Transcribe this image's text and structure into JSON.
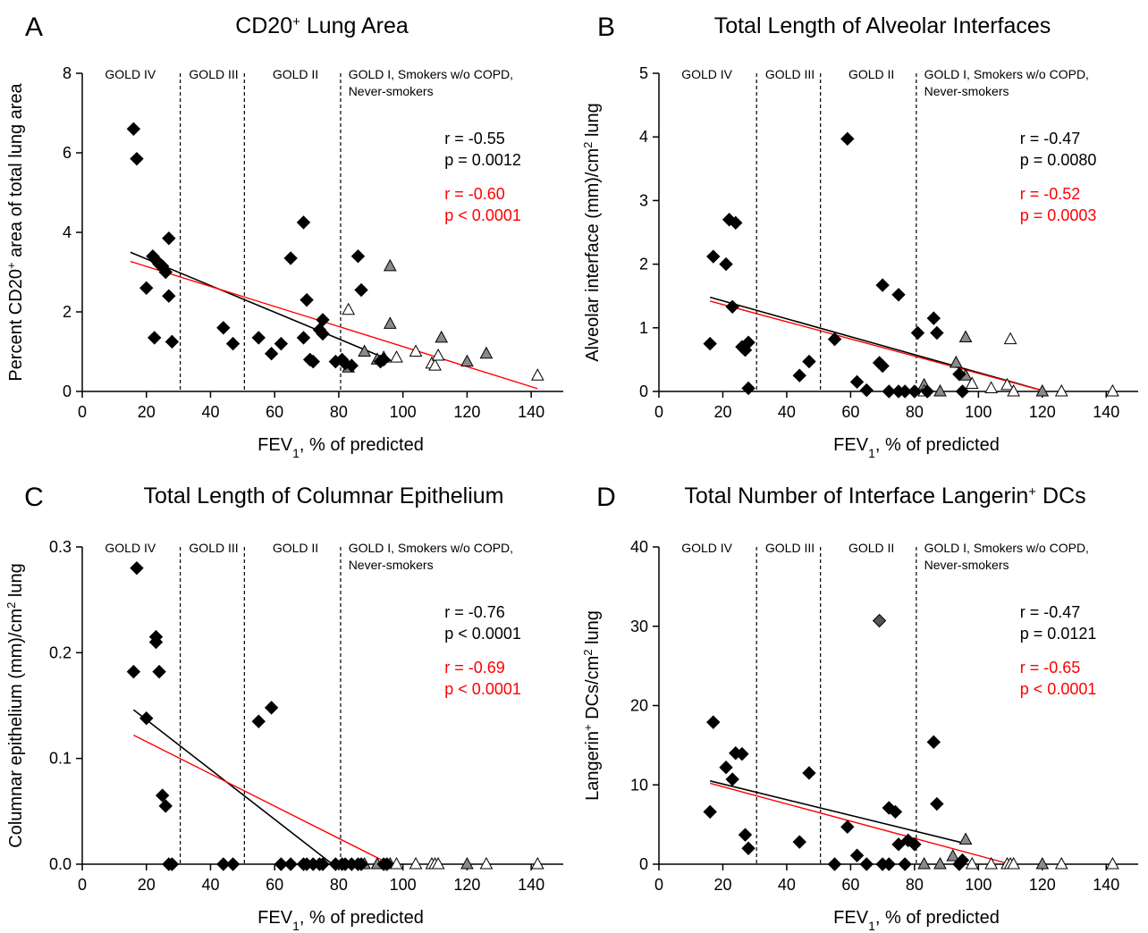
{
  "colors": {
    "black_series": "#000000",
    "gray_series": "#8a8a8a",
    "white_series": "#ffffff",
    "fit_black": "#000000",
    "fit_red": "#ff0000"
  },
  "shared": {
    "xlabel_main": "FEV",
    "xlabel_sub": "1",
    "xlabel_rest": ", % of predicted",
    "gold_labels": [
      "GOLD IV",
      "GOLD III",
      "GOLD II",
      "GOLD I, Smokers w/o COPD,",
      "Never-smokers"
    ],
    "gold_boundaries": [
      30,
      50,
      80
    ]
  },
  "chart_data": [
    {
      "type": "scatter",
      "letter": "A",
      "title": "CD20",
      "title_sup": "+",
      "title_rest": " Lung Area",
      "ylabel_parts": [
        "Percent CD20",
        "+",
        " area of total lung area"
      ],
      "xlim": [
        0,
        150
      ],
      "ylim": [
        0,
        8
      ],
      "xticks": [
        0,
        20,
        40,
        60,
        80,
        100,
        120,
        140
      ],
      "yticks": [
        0,
        2,
        4,
        6,
        8
      ],
      "stats_black": [
        "r = -0.55",
        "p = 0.0012"
      ],
      "stats_red": [
        "r = -0.60",
        "p < 0.0001"
      ],
      "fit_black": [
        [
          15,
          3.5
        ],
        [
          97,
          0.75
        ]
      ],
      "fit_red": [
        [
          15,
          3.27
        ],
        [
          142,
          0.07
        ]
      ],
      "black_diamonds": [
        [
          16,
          6.6
        ],
        [
          17,
          5.85
        ],
        [
          20,
          2.6
        ],
        [
          22,
          3.4
        ],
        [
          22.5,
          1.35
        ],
        [
          23,
          3.3
        ],
        [
          24,
          3.2
        ],
        [
          25,
          3.15
        ],
        [
          26,
          3.0
        ],
        [
          27,
          3.85
        ],
        [
          27,
          2.4
        ],
        [
          28,
          1.25
        ],
        [
          44,
          1.6
        ],
        [
          47,
          1.2
        ],
        [
          55,
          1.35
        ],
        [
          59,
          0.95
        ],
        [
          62,
          1.2
        ],
        [
          65,
          3.35
        ],
        [
          69,
          4.25
        ],
        [
          70,
          2.3
        ],
        [
          69,
          1.35
        ],
        [
          71,
          0.8
        ],
        [
          72,
          0.75
        ],
        [
          74,
          1.55
        ],
        [
          75,
          1.8
        ],
        [
          75,
          1.45
        ],
        [
          79,
          0.75
        ],
        [
          81,
          0.8
        ],
        [
          82,
          0.7
        ],
        [
          84,
          0.65
        ],
        [
          86,
          3.4
        ],
        [
          87,
          2.55
        ],
        [
          93,
          0.75
        ],
        [
          94,
          0.8
        ]
      ],
      "gray_triangles": [
        [
          83,
          0.6
        ],
        [
          88,
          1.0
        ],
        [
          92,
          0.8
        ],
        [
          96,
          3.15
        ],
        [
          96,
          1.7
        ],
        [
          112,
          1.35
        ],
        [
          120,
          0.75
        ],
        [
          126,
          0.95
        ]
      ],
      "white_triangles": [
        [
          83,
          2.05
        ],
        [
          94,
          0.85
        ],
        [
          98,
          0.85
        ],
        [
          104,
          1.0
        ],
        [
          109,
          0.7
        ],
        [
          110,
          0.65
        ],
        [
          111,
          0.9
        ],
        [
          142,
          0.4
        ]
      ]
    },
    {
      "type": "scatter",
      "letter": "B",
      "title": "Total Length of Alveolar Interfaces",
      "title_sup": "",
      "title_rest": "",
      "ylabel_parts": [
        "Alveolar interface (mm)/cm",
        "2",
        " lung"
      ],
      "xlim": [
        0,
        150
      ],
      "ylim": [
        0,
        5
      ],
      "xticks": [
        0,
        20,
        40,
        60,
        80,
        100,
        120,
        140
      ],
      "yticks": [
        0,
        1,
        2,
        3,
        4,
        5
      ],
      "stats_black": [
        "r = -0.47",
        "p = 0.0080"
      ],
      "stats_red": [
        "r = -0.52",
        "p = 0.0003"
      ],
      "fit_black": [
        [
          16,
          1.48
        ],
        [
          121,
          0.0
        ]
      ],
      "fit_red": [
        [
          16,
          1.42
        ],
        [
          121,
          0.0
        ]
      ],
      "black_diamonds": [
        [
          16,
          0.75
        ],
        [
          17,
          2.12
        ],
        [
          21,
          2.0
        ],
        [
          22,
          2.7
        ],
        [
          23,
          1.33
        ],
        [
          24,
          2.65
        ],
        [
          26,
          0.7
        ],
        [
          27,
          0.65
        ],
        [
          28,
          0.77
        ],
        [
          28,
          0.05
        ],
        [
          44,
          0.25
        ],
        [
          47,
          0.47
        ],
        [
          55,
          0.82
        ],
        [
          59,
          3.97
        ],
        [
          62,
          0.15
        ],
        [
          65,
          0.02
        ],
        [
          69,
          0.45
        ],
        [
          70,
          1.67
        ],
        [
          70,
          0.4
        ],
        [
          72,
          0.0
        ],
        [
          75,
          1.52
        ],
        [
          75,
          0.0
        ],
        [
          77,
          0.0
        ],
        [
          80,
          0.0
        ],
        [
          81,
          0.92
        ],
        [
          84,
          0.0
        ],
        [
          86,
          1.15
        ],
        [
          87,
          0.92
        ],
        [
          94,
          0.27
        ],
        [
          95,
          0.0
        ]
      ],
      "gray_triangles": [
        [
          83,
          0.1
        ],
        [
          88,
          0.0
        ],
        [
          93,
          0.45
        ],
        [
          96,
          0.25
        ],
        [
          96,
          0.85
        ],
        [
          120,
          0.0
        ]
      ],
      "white_triangles": [
        [
          83,
          0.0
        ],
        [
          98,
          0.12
        ],
        [
          104,
          0.05
        ],
        [
          109,
          0.1
        ],
        [
          110,
          0.82
        ],
        [
          111,
          0.0
        ],
        [
          126,
          0.0
        ],
        [
          142,
          0.0
        ]
      ]
    },
    {
      "type": "scatter",
      "letter": "C",
      "title": "Total Length of Columnar Epithelium",
      "title_sup": "",
      "title_rest": "",
      "ylabel_parts": [
        "Columnar epithelium (mm)/cm",
        "2",
        " lung"
      ],
      "xlim": [
        0,
        150
      ],
      "ylim": [
        0,
        0.3
      ],
      "xticks": [
        0,
        20,
        40,
        60,
        80,
        100,
        120,
        140
      ],
      "yticks": [
        0.0,
        0.1,
        0.2,
        0.3
      ],
      "ytick_labels": [
        "0.0",
        "0.1",
        "0.2",
        "0.3"
      ],
      "stats_black": [
        "r = -0.76",
        "p < 0.0001"
      ],
      "stats_red": [
        "r = -0.69",
        "p < 0.0001"
      ],
      "fit_black": [
        [
          16,
          0.146
        ],
        [
          78,
          0.0
        ]
      ],
      "fit_red": [
        [
          16,
          0.122
        ],
        [
          96,
          0.0
        ]
      ],
      "black_diamonds": [
        [
          16,
          0.182
        ],
        [
          17,
          0.28
        ],
        [
          20,
          0.138
        ],
        [
          23,
          0.21
        ],
        [
          23,
          0.215
        ],
        [
          24,
          0.182
        ],
        [
          25,
          0.065
        ],
        [
          26,
          0.055
        ],
        [
          27,
          0.0
        ],
        [
          28,
          0.0
        ],
        [
          44,
          0.0
        ],
        [
          47,
          0.0
        ],
        [
          55,
          0.135
        ],
        [
          59,
          0.148
        ],
        [
          62,
          0.0
        ],
        [
          65,
          0.0
        ],
        [
          69,
          0.0
        ],
        [
          70,
          0.0
        ],
        [
          72,
          0.0
        ],
        [
          74,
          0.0
        ],
        [
          75,
          0.0
        ],
        [
          79,
          0.0
        ],
        [
          81,
          0.0
        ],
        [
          82,
          0.0
        ],
        [
          84,
          0.0
        ],
        [
          86,
          0.0
        ],
        [
          87,
          0.0
        ],
        [
          94,
          0.0
        ],
        [
          95,
          0.0
        ]
      ],
      "gray_triangles": [
        [
          88,
          0.0
        ],
        [
          92,
          0.0
        ],
        [
          96,
          0.0
        ],
        [
          120,
          0.0
        ]
      ],
      "white_triangles": [
        [
          98,
          0.0
        ],
        [
          104,
          0.0
        ],
        [
          109,
          0.0
        ],
        [
          110,
          0.0
        ],
        [
          111,
          0.0
        ],
        [
          126,
          0.0
        ],
        [
          142,
          0.0
        ]
      ]
    },
    {
      "type": "scatter",
      "letter": "D",
      "title": "Total Number of Interface Langerin",
      "title_sup": "+",
      "title_rest": " DCs",
      "ylabel_parts": [
        "Langerin",
        "+",
        " DCs/cm",
        "2",
        " lung"
      ],
      "xlim": [
        0,
        150
      ],
      "ylim": [
        0,
        40
      ],
      "xticks": [
        0,
        20,
        40,
        60,
        80,
        100,
        120,
        140
      ],
      "yticks": [
        0,
        10,
        20,
        30,
        40
      ],
      "stats_black": [
        "r = -0.47",
        "p = 0.0121"
      ],
      "stats_red": [
        "r = -0.65",
        "p < 0.0001"
      ],
      "fit_black": [
        [
          16,
          10.5
        ],
        [
          96,
          2.6
        ]
      ],
      "fit_red": [
        [
          16,
          10.2
        ],
        [
          110,
          0.0
        ]
      ],
      "black_diamonds": [
        [
          16,
          6.6
        ],
        [
          17,
          17.9
        ],
        [
          21,
          12.2
        ],
        [
          23,
          10.7
        ],
        [
          24,
          14.0
        ],
        [
          26,
          13.9
        ],
        [
          27,
          3.7
        ],
        [
          28,
          2.0
        ],
        [
          44,
          2.8
        ],
        [
          47,
          11.5
        ],
        [
          55,
          0.0
        ],
        [
          59,
          4.7
        ],
        [
          62,
          1.1
        ],
        [
          65,
          0.0
        ],
        [
          70,
          0.0
        ],
        [
          72,
          7.1
        ],
        [
          74,
          6.6
        ],
        [
          72,
          0.0
        ],
        [
          75,
          2.5
        ],
        [
          77,
          0.0
        ],
        [
          78,
          3.0
        ],
        [
          80,
          2.5
        ],
        [
          86,
          15.4
        ],
        [
          87,
          7.6
        ],
        [
          94,
          0.0
        ],
        [
          95,
          0.5
        ]
      ],
      "dark_gray_diamonds": [
        [
          69,
          30.7
        ]
      ],
      "gray_triangles": [
        [
          83,
          0.0
        ],
        [
          88,
          0.0
        ],
        [
          92,
          1.0
        ],
        [
          96,
          3.1
        ],
        [
          120,
          0.0
        ]
      ],
      "white_triangles": [
        [
          98,
          0.0
        ],
        [
          104,
          0.0
        ],
        [
          109,
          0.0
        ],
        [
          110,
          0.0
        ],
        [
          111,
          0.0
        ],
        [
          126,
          0.0
        ],
        [
          142,
          0.0
        ]
      ]
    }
  ]
}
